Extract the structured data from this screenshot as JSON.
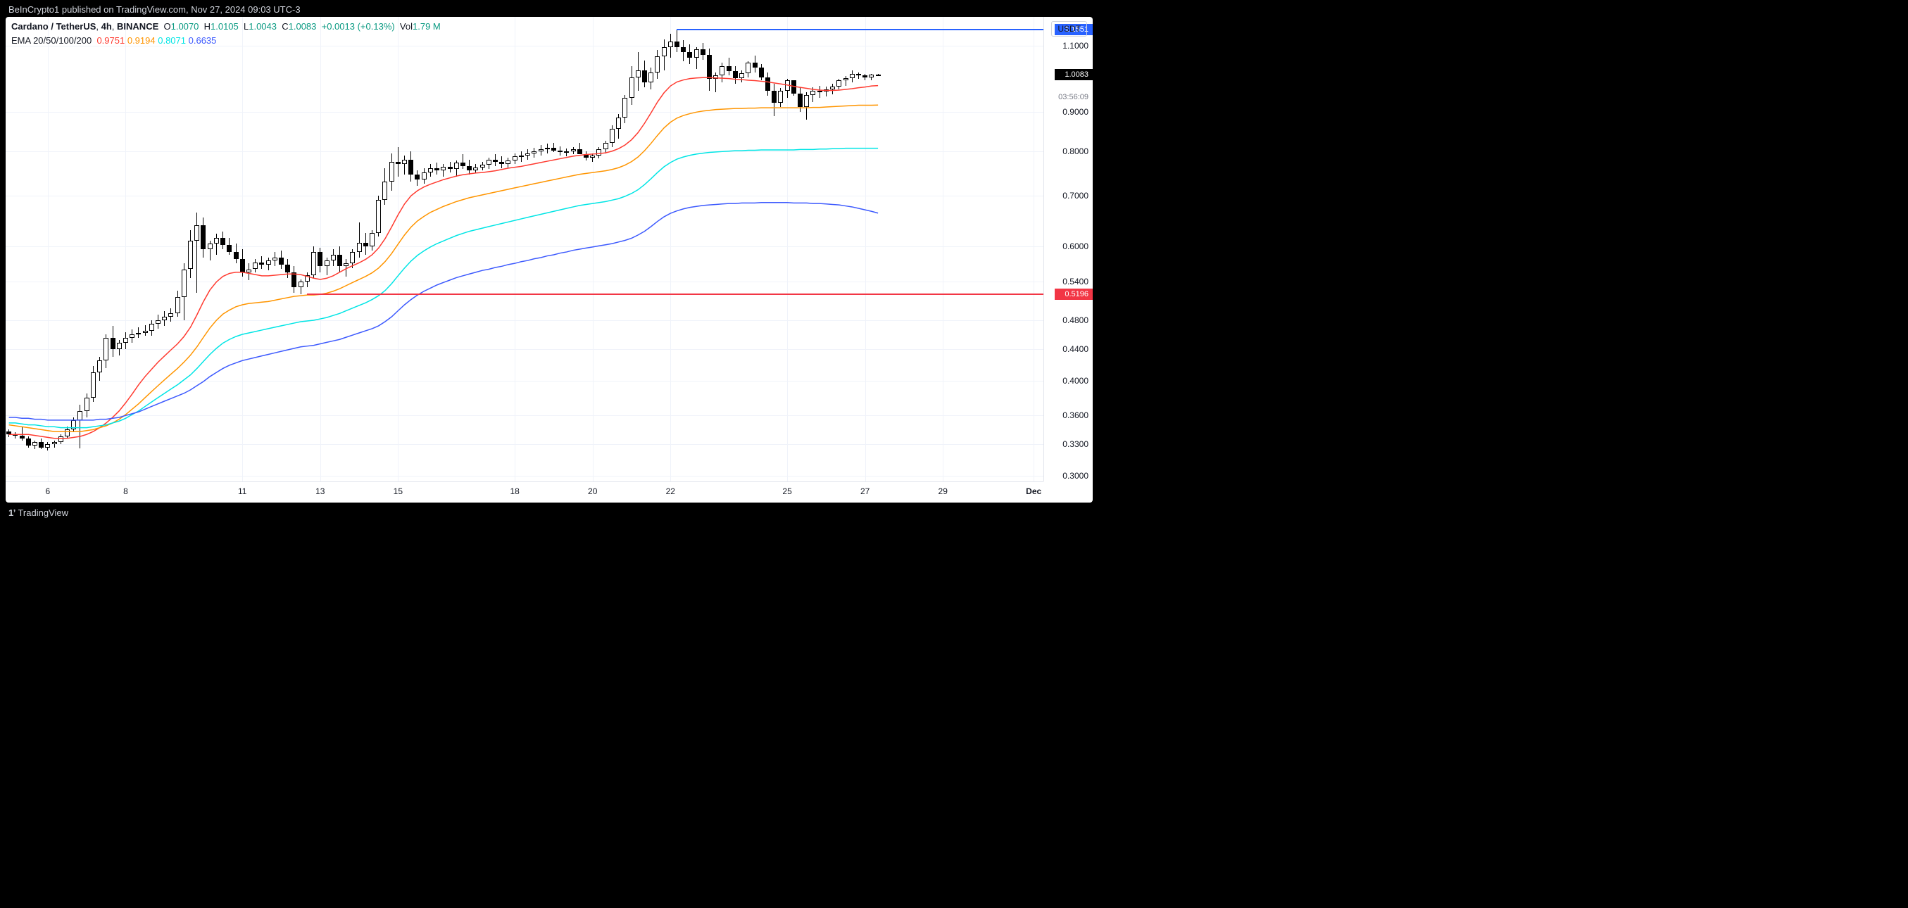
{
  "header": {
    "publisher_text": "BeInCrypto1 published on TradingView.com, Nov 27, 2024 09:03 UTC-3"
  },
  "footer": {
    "logo_text": "TradingView",
    "logo_glyph": "1ʼ"
  },
  "symbol": {
    "name": "Cardano / TetherUS",
    "interval": "4h",
    "exchange": "BINANCE",
    "O": "1.0070",
    "H": "1.0105",
    "L": "1.0043",
    "C": "1.0083",
    "change": "+0.0013",
    "change_pct": "+0.13%",
    "vol": "1.79 M",
    "change_color": "#089981",
    "quote_badge": "USDT"
  },
  "ema": {
    "label": "EMA 20/50/100/200",
    "values": [
      "0.9751",
      "0.9194",
      "0.8071",
      "0.6635"
    ],
    "colors": [
      "#ff3b30",
      "#ff9500",
      "#00e5e5",
      "#3d5afe"
    ]
  },
  "axis": {
    "scale": "log",
    "ylim": [
      0.295,
      1.2
    ],
    "yticks": [
      0.3,
      0.33,
      0.36,
      0.4,
      0.44,
      0.48,
      0.54,
      0.6,
      0.7,
      0.8,
      0.9,
      1.1
    ],
    "ytick_extra": [
      1.0083
    ],
    "xticks": [
      {
        "idx": 6,
        "label": "6"
      },
      {
        "idx": 18,
        "label": "8"
      },
      {
        "idx": 36,
        "label": "11"
      },
      {
        "idx": 48,
        "label": "13"
      },
      {
        "idx": 60,
        "label": "15"
      },
      {
        "idx": 78,
        "label": "18"
      },
      {
        "idx": 90,
        "label": "20"
      },
      {
        "idx": 102,
        "label": "22"
      },
      {
        "idx": 120,
        "label": "25"
      },
      {
        "idx": 132,
        "label": "27"
      },
      {
        "idx": 144,
        "label": "29"
      },
      {
        "idx": 158,
        "label": "Dec",
        "bold": true
      }
    ],
    "x_count": 160,
    "grid_color": "#f0f3fa",
    "border_color": "#e0e3eb"
  },
  "price_tags": [
    {
      "value": 1.1551,
      "text": "1.1551",
      "bg": "#2962ff"
    },
    {
      "value": 1.0083,
      "text": "1.0083",
      "bg": "#000000"
    },
    {
      "value": 0.5196,
      "text": "0.5196",
      "bg": "#f23645"
    }
  ],
  "countdown": {
    "value": 0.97,
    "text": "03:56:09"
  },
  "hlines": [
    {
      "from_idx": 103,
      "value": 1.1551,
      "color": "#2962ff"
    },
    {
      "from_idx": 46,
      "value": 0.5196,
      "color": "#f23645"
    }
  ],
  "ema_series": {
    "20": [
      0.34,
      0.34,
      0.34,
      0.34,
      0.339,
      0.338,
      0.337,
      0.336,
      0.336,
      0.336,
      0.337,
      0.338,
      0.34,
      0.343,
      0.347,
      0.352,
      0.358,
      0.365,
      0.374,
      0.384,
      0.395,
      0.405,
      0.414,
      0.423,
      0.431,
      0.439,
      0.447,
      0.457,
      0.47,
      0.488,
      0.508,
      0.526,
      0.539,
      0.548,
      0.553,
      0.555,
      0.555,
      0.553,
      0.551,
      0.549,
      0.549,
      0.55,
      0.551,
      0.552,
      0.552,
      0.551,
      0.548,
      0.545,
      0.543,
      0.545,
      0.549,
      0.555,
      0.561,
      0.566,
      0.571,
      0.577,
      0.585,
      0.597,
      0.614,
      0.636,
      0.66,
      0.682,
      0.699,
      0.71,
      0.718,
      0.724,
      0.729,
      0.734,
      0.738,
      0.742,
      0.745,
      0.747,
      0.749,
      0.75,
      0.752,
      0.754,
      0.757,
      0.76,
      0.762,
      0.764,
      0.767,
      0.77,
      0.773,
      0.776,
      0.779,
      0.782,
      0.785,
      0.788,
      0.79,
      0.792,
      0.793,
      0.794,
      0.796,
      0.8,
      0.806,
      0.815,
      0.828,
      0.846,
      0.87,
      0.898,
      0.928,
      0.954,
      0.974,
      0.986,
      0.992,
      0.996,
      0.998,
      0.999,
      0.999,
      0.998,
      0.997,
      0.996,
      0.994,
      0.993,
      0.991,
      0.99,
      0.988,
      0.986,
      0.983,
      0.98,
      0.977,
      0.973,
      0.97,
      0.967,
      0.964,
      0.962,
      0.961,
      0.961,
      0.962,
      0.964,
      0.966,
      0.969,
      0.971,
      0.974,
      0.9751
    ],
    "50": [
      0.35,
      0.349,
      0.348,
      0.347,
      0.346,
      0.345,
      0.344,
      0.343,
      0.343,
      0.343,
      0.343,
      0.343,
      0.344,
      0.345,
      0.347,
      0.349,
      0.352,
      0.356,
      0.361,
      0.367,
      0.373,
      0.38,
      0.387,
      0.394,
      0.401,
      0.408,
      0.415,
      0.423,
      0.432,
      0.443,
      0.456,
      0.469,
      0.48,
      0.489,
      0.495,
      0.5,
      0.503,
      0.505,
      0.506,
      0.507,
      0.508,
      0.51,
      0.512,
      0.514,
      0.516,
      0.517,
      0.518,
      0.518,
      0.519,
      0.521,
      0.524,
      0.528,
      0.533,
      0.538,
      0.543,
      0.548,
      0.554,
      0.562,
      0.573,
      0.587,
      0.604,
      0.621,
      0.636,
      0.648,
      0.657,
      0.665,
      0.671,
      0.677,
      0.682,
      0.687,
      0.691,
      0.695,
      0.698,
      0.701,
      0.704,
      0.707,
      0.71,
      0.713,
      0.716,
      0.719,
      0.722,
      0.725,
      0.728,
      0.731,
      0.734,
      0.737,
      0.74,
      0.743,
      0.746,
      0.748,
      0.75,
      0.752,
      0.754,
      0.757,
      0.761,
      0.767,
      0.775,
      0.786,
      0.801,
      0.819,
      0.839,
      0.858,
      0.873,
      0.884,
      0.891,
      0.896,
      0.9,
      0.903,
      0.905,
      0.907,
      0.908,
      0.909,
      0.91,
      0.91,
      0.911,
      0.911,
      0.912,
      0.912,
      0.912,
      0.912,
      0.912,
      0.912,
      0.912,
      0.912,
      0.913,
      0.913,
      0.914,
      0.915,
      0.916,
      0.917,
      0.918,
      0.919,
      0.919,
      0.919,
      0.9194
    ],
    "100": [
      0.352,
      0.352,
      0.351,
      0.35,
      0.35,
      0.349,
      0.348,
      0.348,
      0.347,
      0.347,
      0.347,
      0.347,
      0.347,
      0.348,
      0.349,
      0.35,
      0.352,
      0.354,
      0.357,
      0.361,
      0.365,
      0.37,
      0.375,
      0.38,
      0.385,
      0.39,
      0.395,
      0.401,
      0.407,
      0.415,
      0.424,
      0.433,
      0.441,
      0.448,
      0.453,
      0.457,
      0.46,
      0.462,
      0.464,
      0.466,
      0.468,
      0.47,
      0.472,
      0.474,
      0.476,
      0.478,
      0.479,
      0.48,
      0.482,
      0.484,
      0.487,
      0.49,
      0.494,
      0.498,
      0.502,
      0.506,
      0.511,
      0.517,
      0.525,
      0.536,
      0.549,
      0.562,
      0.574,
      0.584,
      0.592,
      0.599,
      0.605,
      0.61,
      0.615,
      0.62,
      0.624,
      0.628,
      0.631,
      0.634,
      0.637,
      0.64,
      0.643,
      0.646,
      0.649,
      0.652,
      0.655,
      0.658,
      0.661,
      0.664,
      0.667,
      0.67,
      0.673,
      0.676,
      0.679,
      0.681,
      0.683,
      0.685,
      0.687,
      0.69,
      0.693,
      0.698,
      0.704,
      0.712,
      0.723,
      0.736,
      0.75,
      0.763,
      0.773,
      0.781,
      0.786,
      0.79,
      0.793,
      0.795,
      0.797,
      0.798,
      0.799,
      0.8,
      0.801,
      0.801,
      0.802,
      0.802,
      0.803,
      0.803,
      0.803,
      0.803,
      0.803,
      0.803,
      0.804,
      0.804,
      0.804,
      0.805,
      0.805,
      0.806,
      0.806,
      0.807,
      0.807,
      0.807,
      0.807,
      0.807,
      0.8071
    ],
    "200": [
      0.358,
      0.358,
      0.357,
      0.357,
      0.356,
      0.356,
      0.355,
      0.355,
      0.355,
      0.355,
      0.355,
      0.355,
      0.355,
      0.355,
      0.356,
      0.356,
      0.357,
      0.358,
      0.36,
      0.362,
      0.364,
      0.367,
      0.37,
      0.373,
      0.376,
      0.379,
      0.382,
      0.385,
      0.389,
      0.394,
      0.399,
      0.405,
      0.41,
      0.415,
      0.419,
      0.422,
      0.425,
      0.427,
      0.429,
      0.431,
      0.433,
      0.435,
      0.437,
      0.439,
      0.441,
      0.443,
      0.444,
      0.445,
      0.447,
      0.449,
      0.451,
      0.453,
      0.456,
      0.459,
      0.462,
      0.465,
      0.468,
      0.472,
      0.478,
      0.485,
      0.494,
      0.503,
      0.511,
      0.518,
      0.524,
      0.529,
      0.534,
      0.538,
      0.542,
      0.546,
      0.549,
      0.552,
      0.555,
      0.558,
      0.56,
      0.563,
      0.565,
      0.568,
      0.57,
      0.573,
      0.575,
      0.578,
      0.58,
      0.583,
      0.585,
      0.588,
      0.59,
      0.593,
      0.595,
      0.597,
      0.599,
      0.601,
      0.603,
      0.605,
      0.608,
      0.611,
      0.615,
      0.621,
      0.628,
      0.637,
      0.647,
      0.656,
      0.663,
      0.668,
      0.672,
      0.675,
      0.677,
      0.679,
      0.68,
      0.681,
      0.682,
      0.683,
      0.683,
      0.684,
      0.684,
      0.684,
      0.685,
      0.685,
      0.685,
      0.685,
      0.685,
      0.684,
      0.684,
      0.684,
      0.683,
      0.683,
      0.682,
      0.681,
      0.68,
      0.678,
      0.676,
      0.673,
      0.67,
      0.667,
      0.6635
    ]
  },
  "candles": [
    [
      0.343,
      0.345,
      0.337,
      0.34
    ],
    [
      0.34,
      0.342,
      0.336,
      0.339
    ],
    [
      0.339,
      0.348,
      0.334,
      0.336
    ],
    [
      0.336,
      0.338,
      0.327,
      0.329
    ],
    [
      0.329,
      0.334,
      0.325,
      0.332
    ],
    [
      0.332,
      0.336,
      0.325,
      0.327
    ],
    [
      0.327,
      0.332,
      0.324,
      0.33
    ],
    [
      0.33,
      0.334,
      0.327,
      0.332
    ],
    [
      0.332,
      0.34,
      0.33,
      0.338
    ],
    [
      0.338,
      0.348,
      0.336,
      0.345
    ],
    [
      0.345,
      0.358,
      0.342,
      0.355
    ],
    [
      0.355,
      0.372,
      0.326,
      0.365
    ],
    [
      0.365,
      0.385,
      0.358,
      0.38
    ],
    [
      0.38,
      0.418,
      0.375,
      0.41
    ],
    [
      0.41,
      0.43,
      0.4,
      0.425
    ],
    [
      0.425,
      0.46,
      0.415,
      0.455
    ],
    [
      0.455,
      0.472,
      0.43,
      0.44
    ],
    [
      0.44,
      0.452,
      0.432,
      0.448
    ],
    [
      0.448,
      0.463,
      0.44,
      0.455
    ],
    [
      0.455,
      0.467,
      0.448,
      0.46
    ],
    [
      0.46,
      0.47,
      0.455,
      0.462
    ],
    [
      0.462,
      0.473,
      0.458,
      0.465
    ],
    [
      0.465,
      0.48,
      0.458,
      0.475
    ],
    [
      0.475,
      0.488,
      0.468,
      0.48
    ],
    [
      0.48,
      0.493,
      0.472,
      0.485
    ],
    [
      0.485,
      0.498,
      0.478,
      0.49
    ],
    [
      0.49,
      0.525,
      0.485,
      0.515
    ],
    [
      0.515,
      0.57,
      0.48,
      0.56
    ],
    [
      0.56,
      0.63,
      0.545,
      0.61
    ],
    [
      0.61,
      0.665,
      0.522,
      0.64
    ],
    [
      0.64,
      0.655,
      0.58,
      0.595
    ],
    [
      0.595,
      0.61,
      0.575,
      0.605
    ],
    [
      0.605,
      0.623,
      0.585,
      0.615
    ],
    [
      0.615,
      0.628,
      0.595,
      0.603
    ],
    [
      0.603,
      0.615,
      0.585,
      0.59
    ],
    [
      0.59,
      0.605,
      0.57,
      0.578
    ],
    [
      0.578,
      0.595,
      0.548,
      0.555
    ],
    [
      0.555,
      0.57,
      0.542,
      0.56
    ],
    [
      0.56,
      0.578,
      0.555,
      0.572
    ],
    [
      0.572,
      0.582,
      0.56,
      0.568
    ],
    [
      0.568,
      0.58,
      0.558,
      0.575
    ],
    [
      0.575,
      0.59,
      0.565,
      0.58
    ],
    [
      0.58,
      0.592,
      0.56,
      0.568
    ],
    [
      0.568,
      0.578,
      0.545,
      0.555
    ],
    [
      0.555,
      0.565,
      0.522,
      0.53
    ],
    [
      0.53,
      0.543,
      0.519,
      0.54
    ],
    [
      0.54,
      0.555,
      0.53,
      0.55
    ],
    [
      0.55,
      0.6,
      0.545,
      0.59
    ],
    [
      0.59,
      0.598,
      0.555,
      0.565
    ],
    [
      0.565,
      0.58,
      0.55,
      0.575
    ],
    [
      0.575,
      0.595,
      0.565,
      0.585
    ],
    [
      0.585,
      0.6,
      0.555,
      0.565
    ],
    [
      0.565,
      0.578,
      0.548,
      0.57
    ],
    [
      0.57,
      0.595,
      0.562,
      0.59
    ],
    [
      0.59,
      0.645,
      0.58,
      0.607
    ],
    [
      0.607,
      0.625,
      0.585,
      0.6
    ],
    [
      0.6,
      0.63,
      0.592,
      0.625
    ],
    [
      0.625,
      0.7,
      0.618,
      0.69
    ],
    [
      0.69,
      0.76,
      0.68,
      0.73
    ],
    [
      0.73,
      0.795,
      0.71,
      0.775
    ],
    [
      0.775,
      0.81,
      0.74,
      0.77
    ],
    [
      0.77,
      0.79,
      0.745,
      0.78
    ],
    [
      0.78,
      0.8,
      0.73,
      0.745
    ],
    [
      0.745,
      0.755,
      0.72,
      0.735
    ],
    [
      0.735,
      0.76,
      0.725,
      0.75
    ],
    [
      0.75,
      0.77,
      0.74,
      0.76
    ],
    [
      0.76,
      0.773,
      0.745,
      0.755
    ],
    [
      0.755,
      0.77,
      0.74,
      0.763
    ],
    [
      0.763,
      0.775,
      0.75,
      0.758
    ],
    [
      0.758,
      0.777,
      0.74,
      0.772
    ],
    [
      0.772,
      0.793,
      0.758,
      0.765
    ],
    [
      0.765,
      0.78,
      0.745,
      0.755
    ],
    [
      0.755,
      0.77,
      0.748,
      0.762
    ],
    [
      0.762,
      0.775,
      0.755,
      0.768
    ],
    [
      0.768,
      0.785,
      0.758,
      0.78
    ],
    [
      0.78,
      0.792,
      0.765,
      0.775
    ],
    [
      0.775,
      0.788,
      0.76,
      0.77
    ],
    [
      0.77,
      0.785,
      0.762,
      0.778
    ],
    [
      0.778,
      0.795,
      0.77,
      0.788
    ],
    [
      0.788,
      0.8,
      0.775,
      0.79
    ],
    [
      0.79,
      0.805,
      0.78,
      0.795
    ],
    [
      0.795,
      0.808,
      0.785,
      0.8
    ],
    [
      0.8,
      0.815,
      0.79,
      0.805
    ],
    [
      0.805,
      0.818,
      0.795,
      0.808
    ],
    [
      0.808,
      0.82,
      0.798,
      0.802
    ],
    [
      0.802,
      0.812,
      0.79,
      0.798
    ],
    [
      0.798,
      0.807,
      0.788,
      0.8
    ],
    [
      0.8,
      0.81,
      0.793,
      0.805
    ],
    [
      0.805,
      0.82,
      0.795,
      0.792
    ],
    [
      0.792,
      0.8,
      0.778,
      0.785
    ],
    [
      0.785,
      0.795,
      0.775,
      0.79
    ],
    [
      0.79,
      0.81,
      0.782,
      0.805
    ],
    [
      0.805,
      0.825,
      0.795,
      0.82
    ],
    [
      0.82,
      0.865,
      0.81,
      0.855
    ],
    [
      0.855,
      0.895,
      0.83,
      0.885
    ],
    [
      0.885,
      0.948,
      0.87,
      0.94
    ],
    [
      0.94,
      1.035,
      0.92,
      1.0
    ],
    [
      1.0,
      1.08,
      0.96,
      1.02
    ],
    [
      1.02,
      1.052,
      0.97,
      0.985
    ],
    [
      0.985,
      1.03,
      0.965,
      1.015
    ],
    [
      1.015,
      1.085,
      0.995,
      1.065
    ],
    [
      1.065,
      1.12,
      1.02,
      1.095
    ],
    [
      1.095,
      1.14,
      1.06,
      1.115
    ],
    [
      1.115,
      1.155,
      1.08,
      1.095
    ],
    [
      1.095,
      1.118,
      1.05,
      1.08
    ],
    [
      1.08,
      1.105,
      1.04,
      1.06
    ],
    [
      1.06,
      1.095,
      1.025,
      1.088
    ],
    [
      1.088,
      1.11,
      1.055,
      1.07
    ],
    [
      1.07,
      1.09,
      0.96,
      0.995
    ],
    [
      0.995,
      1.015,
      0.955,
      1.005
    ],
    [
      1.005,
      1.045,
      0.985,
      1.035
    ],
    [
      1.035,
      1.06,
      1.005,
      1.018
    ],
    [
      1.018,
      1.035,
      0.98,
      0.998
    ],
    [
      0.998,
      1.02,
      0.985,
      1.012
    ],
    [
      1.012,
      1.05,
      1.0,
      1.045
    ],
    [
      1.045,
      1.068,
      1.015,
      1.03
    ],
    [
      1.03,
      1.04,
      0.99,
      1.0
    ],
    [
      1.0,
      1.015,
      0.945,
      0.96
    ],
    [
      0.96,
      0.98,
      0.89,
      0.925
    ],
    [
      0.925,
      0.968,
      0.915,
      0.96
    ],
    [
      0.96,
      0.995,
      0.94,
      0.99
    ],
    [
      0.99,
      0.987,
      0.945,
      0.952
    ],
    [
      0.952,
      0.97,
      0.9,
      0.915
    ],
    [
      0.915,
      0.955,
      0.88,
      0.948
    ],
    [
      0.948,
      0.97,
      0.928,
      0.96
    ],
    [
      0.96,
      0.975,
      0.94,
      0.958
    ],
    [
      0.958,
      0.972,
      0.943,
      0.965
    ],
    [
      0.965,
      0.98,
      0.95,
      0.973
    ],
    [
      0.973,
      0.996,
      0.965,
      0.992
    ],
    [
      0.992,
      1.003,
      0.975,
      0.998
    ],
    [
      0.998,
      1.02,
      0.985,
      1.01
    ],
    [
      1.01,
      1.015,
      0.995,
      1.005
    ],
    [
      1.005,
      1.01,
      0.99,
      1.0
    ],
    [
      1.0,
      1.01,
      0.992,
      1.007
    ],
    [
      1.007,
      1.011,
      1.004,
      1.008
    ]
  ]
}
